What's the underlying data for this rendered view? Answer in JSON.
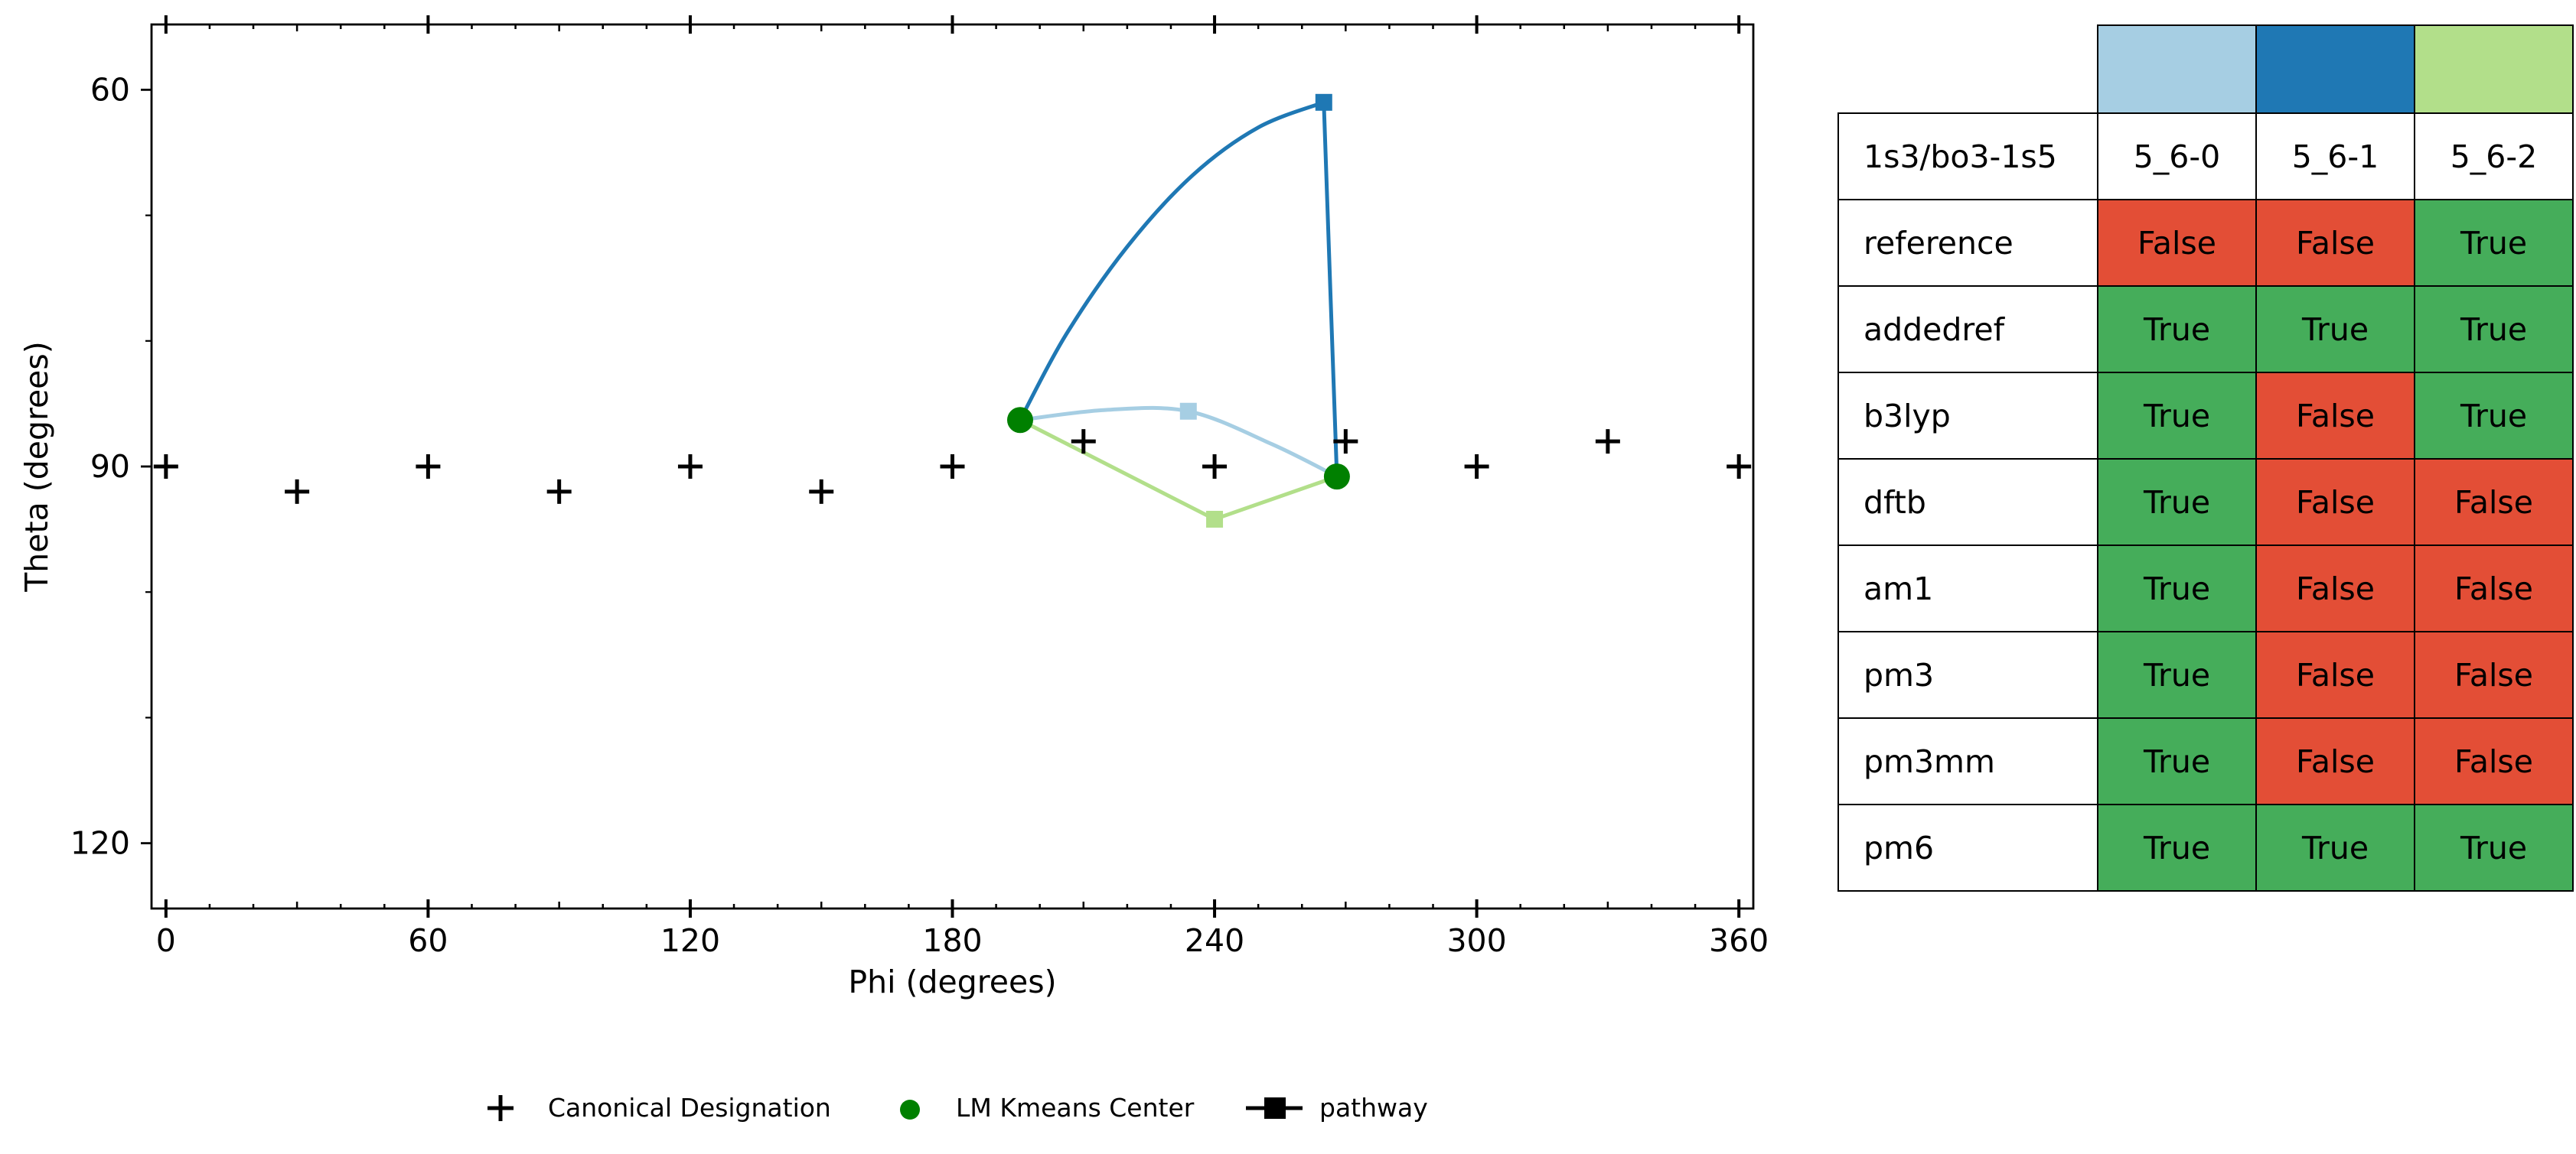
{
  "chart_data": {
    "type": "scatter",
    "xlabel": "Phi (degrees)",
    "ylabel": "Theta (degrees)",
    "xlim": [
      -3.3,
      363.3
    ],
    "ylim": [
      125.2,
      54.8
    ],
    "y_inverted": true,
    "xticks": [
      0,
      60,
      120,
      180,
      240,
      300,
      360
    ],
    "yticks": [
      60,
      90,
      120
    ],
    "canonical_points": [
      {
        "phi": 0,
        "theta": 90
      },
      {
        "phi": 30,
        "theta": 92
      },
      {
        "phi": 60,
        "theta": 90
      },
      {
        "phi": 90,
        "theta": 92
      },
      {
        "phi": 120,
        "theta": 90
      },
      {
        "phi": 150,
        "theta": 92
      },
      {
        "phi": 180,
        "theta": 90
      },
      {
        "phi": 210,
        "theta": 88
      },
      {
        "phi": 240,
        "theta": 90
      },
      {
        "phi": 270,
        "theta": 88
      },
      {
        "phi": 300,
        "theta": 90
      },
      {
        "phi": 330,
        "theta": 88
      },
      {
        "phi": 360,
        "theta": 90
      }
    ],
    "kmeans_centers": [
      {
        "phi": 195.5,
        "theta": 86.3
      },
      {
        "phi": 268,
        "theta": 90.8
      }
    ],
    "pathways": [
      {
        "name": "5_6-0",
        "color": "#a6cee3",
        "marker": {
          "phi": 234,
          "theta": 85.6
        },
        "points": [
          [
            195.5,
            86.3
          ],
          [
            215,
            85.5
          ],
          [
            234,
            85.6
          ],
          [
            253,
            88.2
          ],
          [
            268,
            90.8
          ]
        ]
      },
      {
        "name": "5_6-1",
        "color": "#1f78b4",
        "marker": {
          "phi": 265,
          "theta": 61
        },
        "points": [
          [
            195.5,
            86.3
          ],
          [
            206,
            79.5
          ],
          [
            220,
            72.5
          ],
          [
            235,
            66.8
          ],
          [
            250,
            63.0
          ],
          [
            265,
            61
          ],
          [
            266.5,
            76
          ],
          [
            268,
            90.8
          ]
        ]
      },
      {
        "name": "5_6-2",
        "color": "#b2df8a",
        "marker": {
          "phi": 240,
          "theta": 94.2
        },
        "points": [
          [
            195.5,
            86.3
          ],
          [
            240,
            94.2
          ],
          [
            268,
            90.8
          ]
        ]
      }
    ],
    "legend": {
      "placement": "bottom",
      "entries": [
        "Canonical Designation",
        "LM Kmeans Center",
        "pathway"
      ]
    }
  },
  "table": {
    "header_label": "1s3/bo3-1s5",
    "columns": [
      {
        "name": "5_6-0",
        "color": "#a6cee3"
      },
      {
        "name": "5_6-1",
        "color": "#1f78b4"
      },
      {
        "name": "5_6-2",
        "color": "#b2df8a"
      }
    ],
    "true_color": "#45ad5a",
    "false_color": "#e34e36",
    "rows": [
      {
        "label": "reference",
        "values": [
          "False",
          "False",
          "True"
        ]
      },
      {
        "label": "addedref",
        "values": [
          "True",
          "True",
          "True"
        ]
      },
      {
        "label": "b3lyp",
        "values": [
          "True",
          "False",
          "True"
        ]
      },
      {
        "label": "dftb",
        "values": [
          "True",
          "False",
          "False"
        ]
      },
      {
        "label": "am1",
        "values": [
          "True",
          "False",
          "False"
        ]
      },
      {
        "label": "pm3",
        "values": [
          "True",
          "False",
          "False"
        ]
      },
      {
        "label": "pm3mm",
        "values": [
          "True",
          "False",
          "False"
        ]
      },
      {
        "label": "pm6",
        "values": [
          "True",
          "True",
          "True"
        ]
      }
    ]
  }
}
